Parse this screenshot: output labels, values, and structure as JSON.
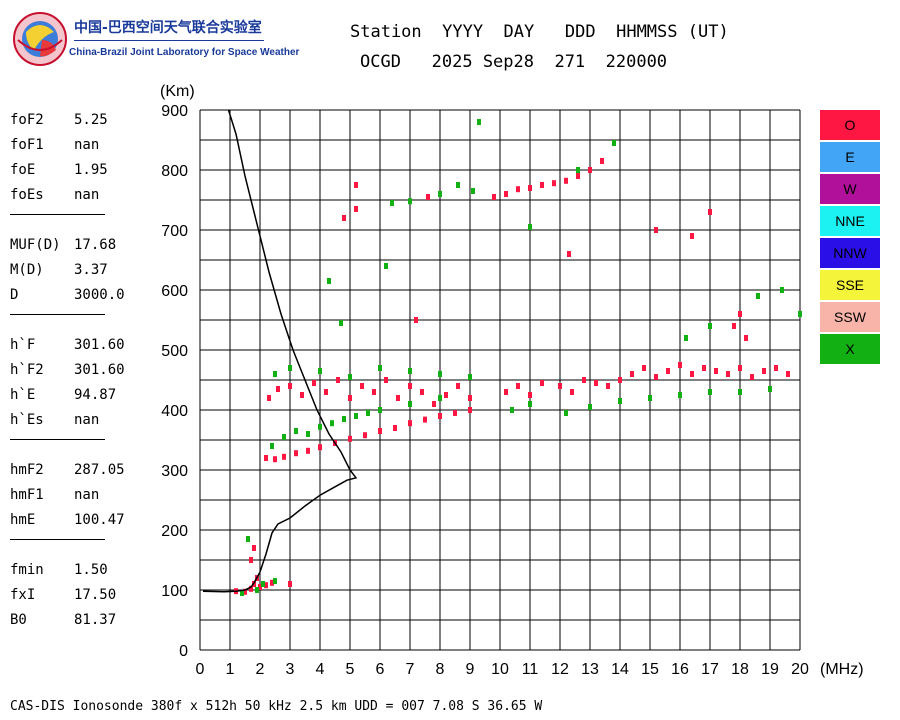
{
  "logo": {
    "name_cn": "中国-巴西空间天气联合实验室",
    "name_en": "China-Brazil Joint Laboratory for Space Weather"
  },
  "header": {
    "line1": "Station  YYYY  DAY   DDD  HHMMSS (UT)",
    "line2": "OCGD   2025 Sep28  271  220000"
  },
  "params": {
    "group1": [
      {
        "label": "foF2",
        "value": "5.25"
      },
      {
        "label": "foF1",
        "value": "nan"
      },
      {
        "label": "foE",
        "value": "1.95"
      },
      {
        "label": "foEs",
        "value": "nan"
      }
    ],
    "group2": [
      {
        "label": "MUF(D)",
        "value": "17.68"
      },
      {
        "label": "M(D)",
        "value": "3.37"
      },
      {
        "label": "D",
        "value": "3000.0"
      }
    ],
    "group3": [
      {
        "label": "h`F",
        "value": "301.60"
      },
      {
        "label": "h`F2",
        "value": "301.60"
      },
      {
        "label": "h`E",
        "value": "94.87"
      },
      {
        "label": "h`Es",
        "value": "nan"
      }
    ],
    "group4": [
      {
        "label": "hmF2",
        "value": "287.05"
      },
      {
        "label": "hmF1",
        "value": "nan"
      },
      {
        "label": "hmE",
        "value": "100.47"
      }
    ],
    "group5": [
      {
        "label": "fmin",
        "value": "1.50"
      },
      {
        "label": "fxI",
        "value": "17.50"
      },
      {
        "label": "B0",
        "value": "81.37"
      }
    ]
  },
  "legend": [
    {
      "label": "O",
      "color": "#ff1744"
    },
    {
      "label": "E",
      "color": "#42a5f5"
    },
    {
      "label": "W",
      "color": "#b0109a"
    },
    {
      "label": "NNE",
      "color": "#1cf2f2"
    },
    {
      "label": "NNW",
      "color": "#2a0fe6"
    },
    {
      "label": "SSE",
      "color": "#f4f53a"
    },
    {
      "label": "SSW",
      "color": "#f8b4a8"
    },
    {
      "label": "X",
      "color": "#12b012"
    }
  ],
  "chart_data": {
    "type": "scatter",
    "xlabel": "(MHz)",
    "ylabel": "(Km)",
    "xlim": [
      0,
      20
    ],
    "ylim": [
      0,
      900
    ],
    "x_ticks": [
      0,
      1,
      2,
      3,
      4,
      5,
      6,
      7,
      8,
      9,
      10,
      11,
      12,
      13,
      14,
      15,
      16,
      17,
      18,
      19,
      20
    ],
    "y_ticks": [
      0,
      100,
      200,
      300,
      400,
      500,
      600,
      700,
      800,
      900
    ],
    "grid": true,
    "series": [
      {
        "color": "#ff1744",
        "points": [
          [
            1.2,
            98
          ],
          [
            1.5,
            97
          ],
          [
            1.7,
            102
          ],
          [
            1.8,
            110
          ],
          [
            1.9,
            120
          ],
          [
            1.7,
            150
          ],
          [
            1.8,
            170
          ],
          [
            2.0,
            105
          ],
          [
            2.2,
            108
          ],
          [
            2.4,
            112
          ],
          [
            3.0,
            110
          ],
          [
            2.2,
            320
          ],
          [
            2.5,
            318
          ],
          [
            2.8,
            322
          ],
          [
            3.2,
            328
          ],
          [
            3.6,
            332
          ],
          [
            4.0,
            338
          ],
          [
            4.5,
            345
          ],
          [
            5.0,
            352
          ],
          [
            5.5,
            358
          ],
          [
            6.0,
            365
          ],
          [
            6.5,
            370
          ],
          [
            7.0,
            378
          ],
          [
            7.5,
            384
          ],
          [
            8.0,
            390
          ],
          [
            8.5,
            395
          ],
          [
            9.0,
            400
          ],
          [
            2.3,
            420
          ],
          [
            2.6,
            435
          ],
          [
            3.0,
            440
          ],
          [
            3.4,
            425
          ],
          [
            3.8,
            445
          ],
          [
            4.2,
            430
          ],
          [
            4.6,
            450
          ],
          [
            5.0,
            420
          ],
          [
            5.4,
            440
          ],
          [
            5.8,
            430
          ],
          [
            6.2,
            450
          ],
          [
            6.6,
            420
          ],
          [
            7.0,
            440
          ],
          [
            7.4,
            430
          ],
          [
            7.8,
            410
          ],
          [
            8.2,
            425
          ],
          [
            8.6,
            440
          ],
          [
            9.0,
            420
          ],
          [
            10.2,
            430
          ],
          [
            10.6,
            440
          ],
          [
            11.0,
            425
          ],
          [
            11.4,
            445
          ],
          [
            12.0,
            440
          ],
          [
            12.4,
            430
          ],
          [
            12.8,
            450
          ],
          [
            13.2,
            445
          ],
          [
            13.6,
            440
          ],
          [
            14.0,
            450
          ],
          [
            14.4,
            460
          ],
          [
            14.8,
            470
          ],
          [
            15.2,
            455
          ],
          [
            15.6,
            465
          ],
          [
            16.0,
            475
          ],
          [
            16.4,
            460
          ],
          [
            16.8,
            470
          ],
          [
            17.2,
            465
          ],
          [
            17.6,
            460
          ],
          [
            18.0,
            470
          ],
          [
            18.4,
            455
          ],
          [
            18.8,
            465
          ],
          [
            19.2,
            470
          ],
          [
            19.6,
            460
          ],
          [
            17.8,
            540
          ],
          [
            18.2,
            520
          ],
          [
            18.0,
            560
          ],
          [
            9.8,
            755
          ],
          [
            10.2,
            760
          ],
          [
            10.6,
            768
          ],
          [
            11.0,
            770
          ],
          [
            11.4,
            775
          ],
          [
            11.8,
            778
          ],
          [
            12.2,
            782
          ],
          [
            12.6,
            790
          ],
          [
            13.0,
            800
          ],
          [
            13.4,
            815
          ],
          [
            4.8,
            720
          ],
          [
            5.2,
            735
          ],
          [
            7.6,
            755
          ],
          [
            15.2,
            700
          ],
          [
            16.4,
            690
          ],
          [
            17.0,
            730
          ],
          [
            12.3,
            660
          ],
          [
            5.2,
            775
          ],
          [
            7.2,
            550
          ]
        ]
      },
      {
        "color": "#12b012",
        "points": [
          [
            1.4,
            95
          ],
          [
            1.9,
            100
          ],
          [
            2.1,
            110
          ],
          [
            2.5,
            115
          ],
          [
            1.6,
            185
          ],
          [
            2.4,
            340
          ],
          [
            2.8,
            355
          ],
          [
            3.2,
            365
          ],
          [
            3.6,
            360
          ],
          [
            4.0,
            372
          ],
          [
            4.4,
            378
          ],
          [
            4.8,
            385
          ],
          [
            5.2,
            390
          ],
          [
            5.6,
            395
          ],
          [
            6.0,
            400
          ],
          [
            7.0,
            410
          ],
          [
            8.0,
            420
          ],
          [
            2.5,
            460
          ],
          [
            3.0,
            470
          ],
          [
            4.0,
            465
          ],
          [
            5.0,
            455
          ],
          [
            6.0,
            470
          ],
          [
            7.0,
            465
          ],
          [
            8.0,
            460
          ],
          [
            9.0,
            455
          ],
          [
            10.4,
            400
          ],
          [
            11.0,
            410
          ],
          [
            12.2,
            395
          ],
          [
            13.0,
            405
          ],
          [
            14.0,
            415
          ],
          [
            15.0,
            420
          ],
          [
            16.0,
            425
          ],
          [
            17.0,
            430
          ],
          [
            18.0,
            430
          ],
          [
            19.0,
            435
          ],
          [
            16.2,
            520
          ],
          [
            17.0,
            540
          ],
          [
            18.6,
            590
          ],
          [
            19.4,
            600
          ],
          [
            20.0,
            560
          ],
          [
            6.4,
            745
          ],
          [
            7.0,
            748
          ],
          [
            8.0,
            760
          ],
          [
            8.6,
            775
          ],
          [
            9.1,
            765
          ],
          [
            9.3,
            880
          ],
          [
            11.0,
            705
          ],
          [
            12.6,
            800
          ],
          [
            13.8,
            845
          ],
          [
            4.7,
            545
          ],
          [
            6.2,
            640
          ],
          [
            4.3,
            615
          ]
        ]
      }
    ],
    "curves": [
      {
        "name": "profile",
        "color": "#000000",
        "points": [
          [
            0.1,
            98
          ],
          [
            0.8,
            97
          ],
          [
            1.2,
            98
          ],
          [
            1.5,
            100
          ],
          [
            1.7,
            105
          ],
          [
            1.8,
            112
          ],
          [
            2.0,
            130
          ],
          [
            2.2,
            160
          ],
          [
            2.4,
            195
          ],
          [
            2.6,
            210
          ],
          [
            3.0,
            220
          ],
          [
            3.5,
            240
          ],
          [
            4.0,
            258
          ],
          [
            4.5,
            272
          ],
          [
            4.9,
            283
          ],
          [
            5.2,
            287
          ],
          [
            5.0,
            300
          ],
          [
            4.7,
            330
          ],
          [
            4.3,
            360
          ],
          [
            3.9,
            400
          ],
          [
            3.5,
            450
          ],
          [
            3.1,
            500
          ],
          [
            2.7,
            560
          ],
          [
            2.3,
            630
          ],
          [
            1.9,
            710
          ],
          [
            1.5,
            790
          ],
          [
            1.2,
            860
          ],
          [
            0.95,
            900
          ]
        ]
      }
    ]
  },
  "footer": "CAS-DIS Ionosonde 380f x 512h 50 kHz 2.5 km UDD = 007 7.08 S 36.65 W"
}
